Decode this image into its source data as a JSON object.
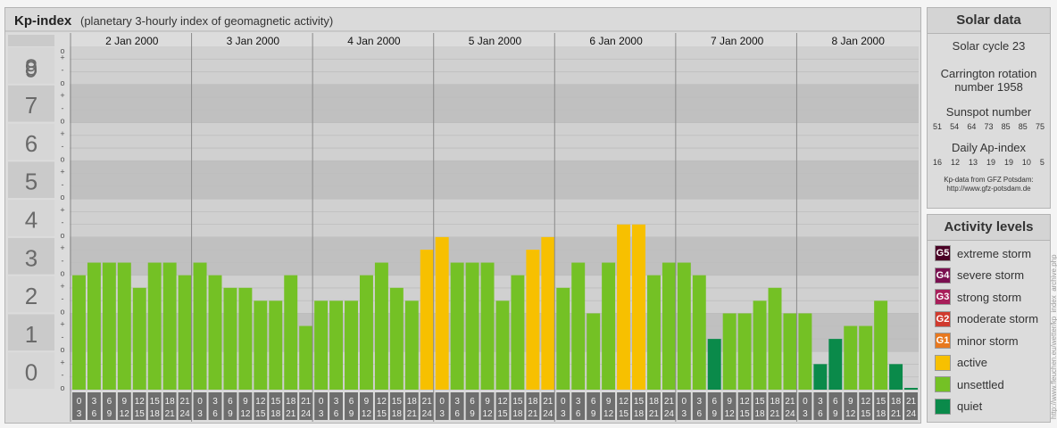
{
  "title": "Kp-index",
  "subtitle": "(planetary 3-hourly index of geomagnetic activity)",
  "chart_data": {
    "type": "bar",
    "ylim": [
      0,
      9
    ],
    "y_ticks": [
      "0",
      "1",
      "2",
      "3",
      "4",
      "5",
      "6",
      "7",
      "8",
      "9"
    ],
    "minor_marks": [
      "o",
      "+",
      "-"
    ],
    "days": [
      "2 Jan 2000",
      "3 Jan 2000",
      "4 Jan 2000",
      "5 Jan 2000",
      "6 Jan 2000",
      "7 Jan 2000",
      "8 Jan 2000"
    ],
    "interval_start": [
      "0",
      "3",
      "6",
      "9",
      "12",
      "15",
      "18",
      "21"
    ],
    "interval_end": [
      "3",
      "6",
      "9",
      "12",
      "15",
      "18",
      "21",
      "24"
    ],
    "values": [
      [
        3.0,
        3.33,
        3.33,
        3.33,
        2.67,
        3.33,
        3.33,
        3.0
      ],
      [
        3.33,
        3.0,
        2.67,
        2.67,
        2.33,
        2.33,
        3.0,
        1.67
      ],
      [
        2.33,
        2.33,
        2.33,
        3.0,
        3.33,
        2.67,
        2.33,
        3.67
      ],
      [
        4.0,
        3.33,
        3.33,
        3.33,
        2.33,
        3.0,
        3.67,
        4.0
      ],
      [
        2.67,
        3.33,
        2.0,
        3.33,
        4.33,
        4.33,
        3.0,
        3.33
      ],
      [
        3.33,
        3.0,
        1.33,
        2.0,
        2.0,
        2.33,
        2.67,
        2.0
      ],
      [
        2.0,
        0.67,
        1.33,
        1.67,
        1.67,
        2.33,
        0.67,
        0.0
      ]
    ]
  },
  "colors": {
    "quiet": "#0a8a4a",
    "unsettled": "#74c125",
    "active": "#f7c000",
    "minor": "#e8781e",
    "moderate": "#d03a2e",
    "strong": "#a81e5a",
    "severe": "#7a1050",
    "extreme": "#4a0025"
  },
  "solar": {
    "title": "Solar data",
    "cycle": "Solar cycle 23",
    "carrington_1": "Carrington rotation",
    "carrington_2": "number 1958",
    "sunspot_title": "Sunspot number",
    "sunspot_values": [
      "51",
      "54",
      "64",
      "73",
      "85",
      "85",
      "75"
    ],
    "ap_title": "Daily Ap-index",
    "ap_values": [
      "16",
      "12",
      "13",
      "19",
      "19",
      "10",
      "5"
    ],
    "credit_1": "Kp-data from GFZ Potsdam:",
    "credit_2": "http://www.gfz-potsdam.de"
  },
  "levels": {
    "title": "Activity levels",
    "items": [
      {
        "code": "G5",
        "label": "extreme storm",
        "color": "#4a0025"
      },
      {
        "code": "G4",
        "label": "severe storm",
        "color": "#7a1050"
      },
      {
        "code": "G3",
        "label": "strong storm",
        "color": "#a81e5a"
      },
      {
        "code": "G2",
        "label": "moderate storm",
        "color": "#d03a2e"
      },
      {
        "code": "G1",
        "label": "minor storm",
        "color": "#e8781e"
      },
      {
        "code": "",
        "label": "active",
        "color": "#f7c000"
      },
      {
        "code": "",
        "label": "unsettled",
        "color": "#74c125"
      },
      {
        "code": "",
        "label": "quiet",
        "color": "#0a8a4a"
      }
    ]
  },
  "side_credit": "http://www.fleuchen.eu/wetter/kp_index_archive.php"
}
